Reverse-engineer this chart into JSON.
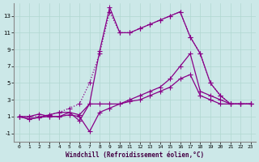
{
  "bg_color": "#cce8e8",
  "line_color": "#880088",
  "xlabel": "Windchill (Refroidissement éolien,°C)",
  "xlim": [
    -0.5,
    23.5
  ],
  "ylim": [
    -2,
    14.5
  ],
  "yticks": [
    -1,
    1,
    3,
    5,
    7,
    9,
    11,
    13
  ],
  "xticks": [
    0,
    1,
    2,
    3,
    4,
    5,
    6,
    7,
    8,
    9,
    10,
    11,
    12,
    13,
    14,
    15,
    16,
    17,
    18,
    19,
    20,
    21,
    22,
    23
  ],
  "grid_color": "#b0d8d0",
  "line1_x": [
    0,
    1,
    2,
    3,
    4,
    5,
    6,
    7,
    8,
    9,
    10,
    11,
    12,
    13,
    14,
    15,
    16,
    17,
    18,
    19,
    20,
    21,
    22,
    23
  ],
  "line1_y": [
    1,
    1,
    1,
    1.2,
    1.5,
    2,
    2.5,
    5,
    8.5,
    13.5,
    11,
    11,
    11.5,
    12,
    12.5,
    13,
    13.5,
    10.5,
    8.5,
    5,
    3.5,
    2.5,
    2.5,
    2.5
  ],
  "line2_x": [
    0,
    1,
    2,
    3,
    4,
    5,
    6,
    7,
    8,
    9,
    10,
    11,
    12,
    13,
    14,
    15,
    16,
    17,
    18,
    19,
    20,
    21,
    22,
    23
  ],
  "line2_y": [
    1,
    0.7,
    0.9,
    1.2,
    1.5,
    1.5,
    1.2,
    2.5,
    8.8,
    14,
    11,
    11,
    11.5,
    12,
    12.5,
    13,
    13.5,
    10.5,
    8.5,
    5,
    3.5,
    2.5,
    2.5,
    2.5
  ],
  "line3_x": [
    0,
    1,
    2,
    3,
    4,
    5,
    6,
    7,
    8,
    9,
    10,
    11,
    12,
    13,
    14,
    15,
    16,
    17,
    18,
    19,
    20,
    21,
    22,
    23
  ],
  "line3_y": [
    1,
    1,
    1.3,
    1,
    1,
    1.5,
    0.5,
    2.5,
    2.5,
    2.5,
    2.5,
    3,
    3.5,
    4,
    4.5,
    5.5,
    7,
    8.5,
    4,
    3.5,
    3,
    2.5,
    2.5,
    2.5
  ],
  "line4_x": [
    0,
    1,
    2,
    3,
    4,
    5,
    6,
    7,
    8,
    9,
    10,
    11,
    12,
    13,
    14,
    15,
    16,
    17,
    18,
    19,
    20,
    21,
    22,
    23
  ],
  "line4_y": [
    1,
    0.7,
    0.9,
    1,
    1,
    1.2,
    1,
    -0.8,
    1.5,
    2,
    2.5,
    2.8,
    3,
    3.5,
    4,
    4.5,
    5.5,
    6,
    3.5,
    3,
    2.5,
    2.5,
    2.5,
    2.5
  ],
  "line1_style": "dotted",
  "line2_style": "solid",
  "line3_style": "solid",
  "line4_style": "solid"
}
